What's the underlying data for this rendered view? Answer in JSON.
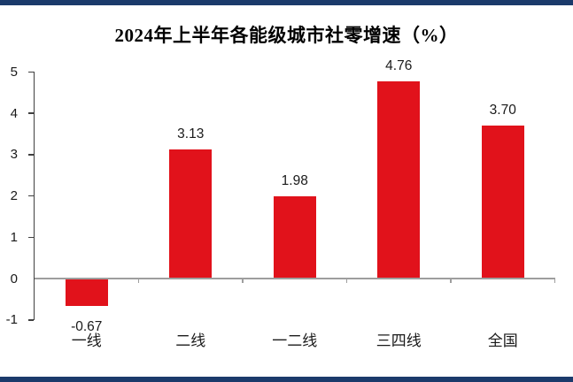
{
  "chart_data": {
    "type": "bar",
    "title": "2024年上半年各能级城市社零增速（%）",
    "categories": [
      "一线",
      "二线",
      "一二线",
      "三四线",
      "全国"
    ],
    "values": [
      -0.67,
      3.13,
      1.98,
      4.76,
      3.7
    ],
    "value_labels": [
      "-0.67",
      "3.13",
      "1.98",
      "4.76",
      "3.70"
    ],
    "xlabel": "",
    "ylabel": "",
    "ylim": [
      -1,
      5
    ],
    "yticks": [
      "5",
      "4",
      "3",
      "2",
      "1",
      "0",
      "-1"
    ],
    "grid": false,
    "legend": false,
    "bar_color": "#E1121B"
  },
  "colors": {
    "bar_red": "#E1121B",
    "rule_navy": "#1B3A6B",
    "y_axis": "#404040",
    "x_axis": "#9E9E9E",
    "text": "#1A1A1A"
  }
}
